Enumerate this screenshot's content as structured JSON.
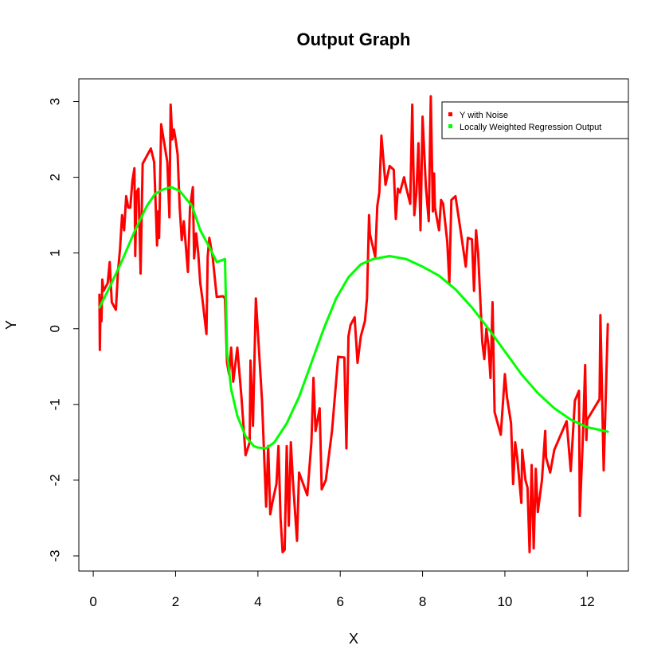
{
  "chart_data": {
    "type": "line",
    "title": "Output Graph",
    "xlabel": "X",
    "ylabel": "Y",
    "xlim": [
      -0.35,
      13.0
    ],
    "ylim": [
      -3.2,
      3.3
    ],
    "x_ticks": [
      0,
      2,
      4,
      6,
      8,
      10,
      12
    ],
    "y_ticks": [
      -3,
      -2,
      -1,
      0,
      1,
      2,
      3
    ],
    "grid": false,
    "legend_position": "top-right",
    "series": [
      {
        "name": "Y with Noise",
        "color": "#ff0000",
        "points": [
          [
            0.15,
            0.45
          ],
          [
            0.16,
            -0.28
          ],
          [
            0.18,
            0.4
          ],
          [
            0.2,
            0.1
          ],
          [
            0.22,
            0.65
          ],
          [
            0.25,
            0.5
          ],
          [
            0.3,
            0.55
          ],
          [
            0.35,
            0.6
          ],
          [
            0.4,
            0.88
          ],
          [
            0.45,
            0.35
          ],
          [
            0.55,
            0.25
          ],
          [
            0.6,
            0.75
          ],
          [
            0.65,
            1.05
          ],
          [
            0.7,
            1.5
          ],
          [
            0.75,
            1.3
          ],
          [
            0.8,
            1.75
          ],
          [
            0.85,
            1.6
          ],
          [
            0.9,
            1.6
          ],
          [
            0.95,
            1.95
          ],
          [
            1.0,
            2.12
          ],
          [
            1.02,
            0.96
          ],
          [
            1.05,
            1.8
          ],
          [
            1.1,
            1.85
          ],
          [
            1.15,
            0.73
          ],
          [
            1.2,
            2.18
          ],
          [
            1.3,
            2.28
          ],
          [
            1.4,
            2.38
          ],
          [
            1.48,
            2.2
          ],
          [
            1.55,
            1.1
          ],
          [
            1.58,
            1.55
          ],
          [
            1.6,
            1.2
          ],
          [
            1.65,
            2.7
          ],
          [
            1.8,
            2.2
          ],
          [
            1.85,
            1.47
          ],
          [
            1.88,
            2.96
          ],
          [
            1.92,
            2.5
          ],
          [
            1.96,
            2.63
          ],
          [
            2.0,
            2.5
          ],
          [
            2.05,
            2.3
          ],
          [
            2.1,
            1.6
          ],
          [
            2.15,
            1.17
          ],
          [
            2.2,
            1.42
          ],
          [
            2.3,
            0.75
          ],
          [
            2.35,
            1.6
          ],
          [
            2.42,
            1.87
          ],
          [
            2.45,
            0.93
          ],
          [
            2.5,
            1.26
          ],
          [
            2.55,
            1.0
          ],
          [
            2.6,
            0.6
          ],
          [
            2.65,
            0.4
          ],
          [
            2.75,
            -0.07
          ],
          [
            2.78,
            0.95
          ],
          [
            2.82,
            1.2
          ],
          [
            2.9,
            0.95
          ],
          [
            3.0,
            0.42
          ],
          [
            3.15,
            0.43
          ],
          [
            3.2,
            0.4
          ],
          [
            3.25,
            -0.45
          ],
          [
            3.3,
            -0.6
          ],
          [
            3.35,
            -0.25
          ],
          [
            3.4,
            -0.7
          ],
          [
            3.5,
            -0.25
          ],
          [
            3.6,
            -0.9
          ],
          [
            3.7,
            -1.67
          ],
          [
            3.8,
            -1.5
          ],
          [
            3.82,
            -0.42
          ],
          [
            3.88,
            -1.28
          ],
          [
            3.95,
            0.4
          ],
          [
            4.1,
            -0.95
          ],
          [
            4.2,
            -2.35
          ],
          [
            4.25,
            -1.55
          ],
          [
            4.3,
            -2.45
          ],
          [
            4.35,
            -2.3
          ],
          [
            4.45,
            -2.05
          ],
          [
            4.5,
            -1.55
          ],
          [
            4.55,
            -2.5
          ],
          [
            4.6,
            -2.95
          ],
          [
            4.65,
            -2.92
          ],
          [
            4.7,
            -1.55
          ],
          [
            4.75,
            -2.6
          ],
          [
            4.8,
            -1.5
          ],
          [
            4.85,
            -2.0
          ],
          [
            4.95,
            -2.8
          ],
          [
            5.0,
            -1.9
          ],
          [
            5.1,
            -2.05
          ],
          [
            5.2,
            -2.2
          ],
          [
            5.3,
            -1.5
          ],
          [
            5.35,
            -0.65
          ],
          [
            5.4,
            -1.35
          ],
          [
            5.5,
            -1.05
          ],
          [
            5.55,
            -2.12
          ],
          [
            5.65,
            -2.0
          ],
          [
            5.8,
            -1.35
          ],
          [
            5.95,
            -0.37
          ],
          [
            6.1,
            -0.38
          ],
          [
            6.15,
            -1.58
          ],
          [
            6.2,
            -0.1
          ],
          [
            6.25,
            0.05
          ],
          [
            6.35,
            0.15
          ],
          [
            6.42,
            -0.45
          ],
          [
            6.5,
            -0.1
          ],
          [
            6.6,
            0.1
          ],
          [
            6.65,
            0.4
          ],
          [
            6.7,
            1.5
          ],
          [
            6.72,
            1.25
          ],
          [
            6.85,
            0.95
          ],
          [
            6.9,
            1.62
          ],
          [
            6.95,
            1.8
          ],
          [
            7.0,
            2.55
          ],
          [
            7.1,
            1.9
          ],
          [
            7.2,
            2.15
          ],
          [
            7.3,
            2.1
          ],
          [
            7.35,
            1.45
          ],
          [
            7.4,
            1.85
          ],
          [
            7.45,
            1.8
          ],
          [
            7.55,
            2.0
          ],
          [
            7.6,
            1.87
          ],
          [
            7.7,
            1.65
          ],
          [
            7.75,
            2.96
          ],
          [
            7.8,
            1.5
          ],
          [
            7.85,
            1.8
          ],
          [
            7.9,
            2.45
          ],
          [
            7.95,
            1.3
          ],
          [
            8.0,
            2.8
          ],
          [
            8.08,
            1.88
          ],
          [
            8.15,
            1.42
          ],
          [
            8.2,
            3.07
          ],
          [
            8.25,
            1.55
          ],
          [
            8.28,
            2.05
          ],
          [
            8.3,
            1.6
          ],
          [
            8.4,
            1.3
          ],
          [
            8.45,
            1.7
          ],
          [
            8.5,
            1.65
          ],
          [
            8.6,
            1.15
          ],
          [
            8.65,
            0.6
          ],
          [
            8.7,
            1.7
          ],
          [
            8.8,
            1.75
          ],
          [
            8.95,
            1.2
          ],
          [
            9.05,
            0.82
          ],
          [
            9.1,
            1.2
          ],
          [
            9.2,
            1.18
          ],
          [
            9.25,
            0.5
          ],
          [
            9.3,
            1.3
          ],
          [
            9.35,
            1.0
          ],
          [
            9.45,
            -0.17
          ],
          [
            9.5,
            -0.4
          ],
          [
            9.55,
            0.0
          ],
          [
            9.6,
            -0.22
          ],
          [
            9.65,
            -0.65
          ],
          [
            9.7,
            0.35
          ],
          [
            9.75,
            -1.1
          ],
          [
            9.9,
            -1.4
          ],
          [
            10.0,
            -0.6
          ],
          [
            10.05,
            -0.9
          ],
          [
            10.15,
            -1.25
          ],
          [
            10.2,
            -2.05
          ],
          [
            10.25,
            -1.5
          ],
          [
            10.3,
            -1.7
          ],
          [
            10.4,
            -2.3
          ],
          [
            10.42,
            -1.6
          ],
          [
            10.5,
            -2.0
          ],
          [
            10.55,
            -2.1
          ],
          [
            10.6,
            -2.95
          ],
          [
            10.65,
            -1.8
          ],
          [
            10.7,
            -2.9
          ],
          [
            10.75,
            -1.85
          ],
          [
            10.8,
            -2.42
          ],
          [
            10.9,
            -2.0
          ],
          [
            10.98,
            -1.35
          ],
          [
            11.0,
            -1.7
          ],
          [
            11.1,
            -1.9
          ],
          [
            11.2,
            -1.6
          ],
          [
            11.5,
            -1.22
          ],
          [
            11.6,
            -1.88
          ],
          [
            11.7,
            -0.95
          ],
          [
            11.8,
            -0.82
          ],
          [
            11.82,
            -2.47
          ],
          [
            11.9,
            -1.35
          ],
          [
            11.95,
            -0.48
          ],
          [
            11.98,
            -1.47
          ],
          [
            12.0,
            -1.2
          ],
          [
            12.3,
            -0.93
          ],
          [
            12.32,
            0.18
          ],
          [
            12.4,
            -1.87
          ],
          [
            12.5,
            0.06
          ]
        ]
      },
      {
        "name": "Locally Weighted Regression Output",
        "color": "#00ff00",
        "points": [
          [
            0.15,
            0.28
          ],
          [
            0.4,
            0.55
          ],
          [
            0.7,
            0.9
          ],
          [
            1.0,
            1.28
          ],
          [
            1.3,
            1.62
          ],
          [
            1.5,
            1.78
          ],
          [
            1.7,
            1.84
          ],
          [
            1.9,
            1.87
          ],
          [
            2.1,
            1.82
          ],
          [
            2.4,
            1.62
          ],
          [
            2.6,
            1.3
          ],
          [
            2.8,
            1.1
          ],
          [
            3.0,
            0.88
          ],
          [
            3.1,
            0.9
          ],
          [
            3.2,
            0.92
          ],
          [
            3.25,
            -0.3
          ],
          [
            3.35,
            -0.8
          ],
          [
            3.5,
            -1.15
          ],
          [
            3.7,
            -1.42
          ],
          [
            3.9,
            -1.55
          ],
          [
            4.0,
            -1.57
          ],
          [
            4.2,
            -1.58
          ],
          [
            4.4,
            -1.5
          ],
          [
            4.7,
            -1.25
          ],
          [
            5.0,
            -0.9
          ],
          [
            5.3,
            -0.45
          ],
          [
            5.6,
            0.0
          ],
          [
            5.9,
            0.4
          ],
          [
            6.2,
            0.68
          ],
          [
            6.5,
            0.85
          ],
          [
            6.8,
            0.92
          ],
          [
            7.2,
            0.96
          ],
          [
            7.6,
            0.92
          ],
          [
            8.0,
            0.82
          ],
          [
            8.4,
            0.7
          ],
          [
            8.8,
            0.52
          ],
          [
            9.2,
            0.28
          ],
          [
            9.6,
            0.0
          ],
          [
            10.0,
            -0.3
          ],
          [
            10.4,
            -0.6
          ],
          [
            10.8,
            -0.85
          ],
          [
            11.2,
            -1.05
          ],
          [
            11.6,
            -1.2
          ],
          [
            12.0,
            -1.3
          ],
          [
            12.5,
            -1.36
          ]
        ]
      }
    ]
  },
  "legend": {
    "items": [
      {
        "label": "Y with Noise",
        "color": "#ff0000"
      },
      {
        "label": "Locally Weighted Regression Output",
        "color": "#00ff00"
      }
    ]
  }
}
